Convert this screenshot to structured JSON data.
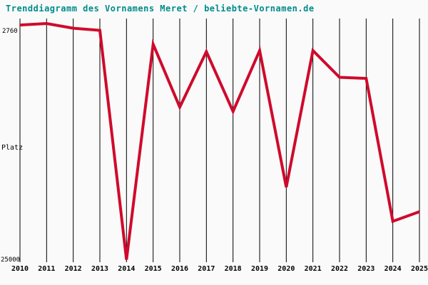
{
  "title": "Trenddiagramm des Vornamens Meret / beliebte-Vornamen.de",
  "colors": {
    "title": "#008b8b",
    "line": "#cf0a2c",
    "grid": "#000000",
    "label": "#000000",
    "background": "#fafafa"
  },
  "y_axis": {
    "top_label": "2760",
    "mid_label": "Platz",
    "bottom_label": "25000"
  },
  "chart_data": {
    "type": "line",
    "title": "Trenddiagramm des Vornamens Meret / beliebte-Vornamen.de",
    "xlabel": "",
    "ylabel": "Platz",
    "x": [
      2010,
      2011,
      2012,
      2013,
      2014,
      2015,
      2016,
      2017,
      2018,
      2019,
      2020,
      2021,
      2022,
      2023,
      2024,
      2025
    ],
    "values": [
      2900,
      2760,
      3200,
      3400,
      24900,
      4700,
      10600,
      5400,
      11000,
      5300,
      18100,
      5300,
      7800,
      7900,
      21300,
      20400
    ],
    "ylim": [
      2760,
      25000
    ],
    "y_axis_inverted": true,
    "y_tick_labels": [
      "2760",
      "25000"
    ],
    "grid": "vertical-only",
    "legend": "none",
    "line_color": "#cf0a2c",
    "line_width": 4
  }
}
